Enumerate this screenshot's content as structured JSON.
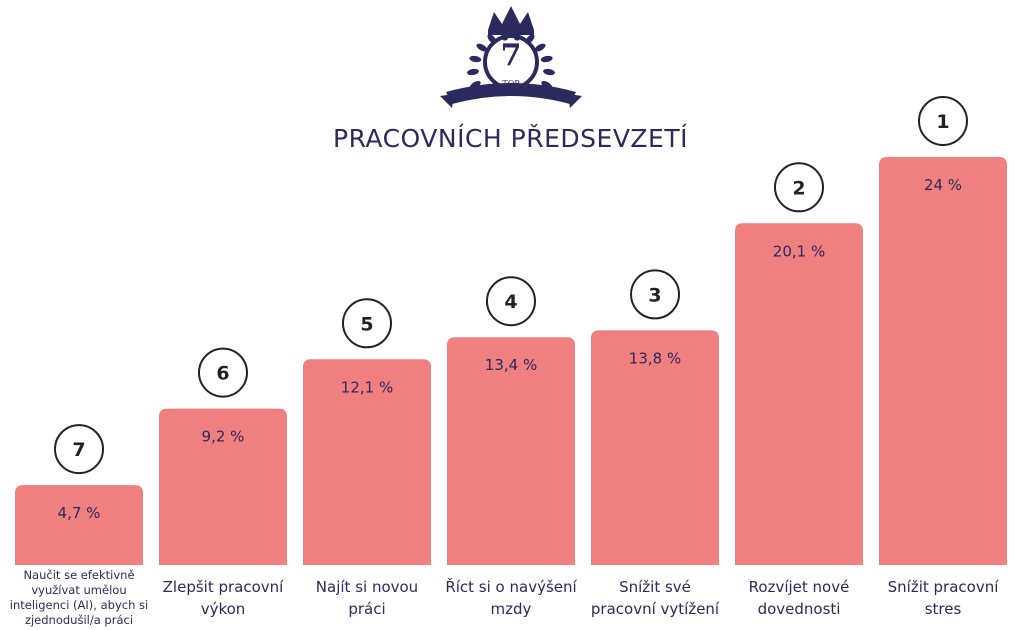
{
  "logo": {
    "text_number": "7",
    "text_word": "TOP",
    "color": "#2b2a5e"
  },
  "chart_data": {
    "type": "bar",
    "title": "PRACOVNÍCH PŘEDSEVZETÍ",
    "categories": [
      "Naučit se efektivně využívat umělou inteligenci (AI), abych si zjednodušil/a práci",
      "Zlepšit pracovní výkon",
      "Najít si novou práci",
      "Říct si o navýšení mzdy",
      "Snížit své pracovní vytížení",
      "Rozvíjet nové dovednosti",
      "Snížit pracovní stres"
    ],
    "values": [
      4.7,
      9.2,
      12.1,
      13.4,
      13.8,
      20.1,
      24
    ],
    "value_labels": [
      "4,7 %",
      "9,2 %",
      "12,1 %",
      "13,4 %",
      "13,8 %",
      "20,1 %",
      "24 %"
    ],
    "ranks": [
      "7",
      "6",
      "5",
      "4",
      "3",
      "2",
      "1"
    ],
    "ylim": [
      0,
      24
    ],
    "grid": false,
    "bar_color": "#f07f80",
    "text_color": "#2b2a5e"
  }
}
